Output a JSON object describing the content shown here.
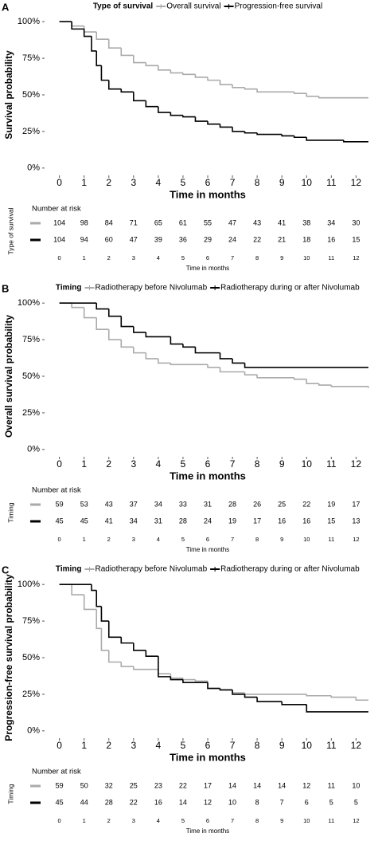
{
  "chart_data": [
    {
      "type": "line",
      "step": true,
      "panel": "A",
      "legend_title": "Type of survival",
      "xlabel": "Time in months",
      "ylabel": "Survival probability",
      "xlim": [
        -0.6,
        12.6
      ],
      "xticks": [
        0,
        1,
        2,
        3,
        4,
        5,
        6,
        7,
        8,
        9,
        10,
        11,
        12
      ],
      "ylim": [
        -5,
        105
      ],
      "yticks": [
        {
          "value": 0,
          "label": "0%"
        },
        {
          "value": 25,
          "label": "25%"
        },
        {
          "value": 50,
          "label": "50%"
        },
        {
          "value": 75,
          "label": "75%"
        },
        {
          "value": 100,
          "label": "100%"
        }
      ],
      "series": [
        {
          "name": "Overall survival",
          "color": "#aaaaaa",
          "x": [
            0,
            0.5,
            1,
            1.5,
            2,
            2.5,
            3,
            3.5,
            4,
            4.5,
            5,
            5.5,
            6,
            6.5,
            7,
            7.5,
            8,
            9.5,
            10,
            10.5,
            12.5
          ],
          "values": [
            100,
            97,
            93,
            88,
            82,
            77,
            72,
            70,
            67,
            65,
            64,
            62,
            60,
            57,
            55,
            54,
            52,
            51,
            49,
            48,
            48
          ]
        },
        {
          "name": "Progression-free survival",
          "color": "#000000",
          "x": [
            0,
            0.5,
            1,
            1.3,
            1.5,
            1.7,
            2,
            2.5,
            3,
            3.5,
            4,
            4.5,
            5,
            5.5,
            6,
            6.5,
            7,
            7.5,
            8,
            9,
            9.5,
            10,
            11.5,
            12.5
          ],
          "values": [
            100,
            95,
            90,
            80,
            70,
            60,
            54,
            52,
            46,
            42,
            38,
            36,
            35,
            32,
            30,
            28,
            25,
            24,
            23,
            22,
            21,
            19,
            18,
            18
          ]
        }
      ],
      "risk_table": {
        "title": "Number at risk",
        "ylabel": "Type of survival",
        "xlabel": "Time in months",
        "xticks": [
          0,
          1,
          2,
          3,
          4,
          5,
          6,
          7,
          8,
          9,
          10,
          11,
          12
        ],
        "rows": [
          [
            104,
            98,
            84,
            71,
            65,
            61,
            55,
            47,
            43,
            41,
            38,
            34,
            30
          ],
          [
            104,
            94,
            60,
            47,
            39,
            36,
            29,
            24,
            22,
            21,
            18,
            16,
            15
          ]
        ]
      }
    },
    {
      "type": "line",
      "step": true,
      "panel": "B",
      "legend_title": "Timing",
      "xlabel": "Time in months",
      "ylabel": "Overall survival probability",
      "xlim": [
        -0.6,
        12.6
      ],
      "xticks": [
        0,
        1,
        2,
        3,
        4,
        5,
        6,
        7,
        8,
        9,
        10,
        11,
        12
      ],
      "ylim": [
        -5,
        105
      ],
      "yticks": [
        {
          "value": 0,
          "label": "0%"
        },
        {
          "value": 25,
          "label": "25%"
        },
        {
          "value": 50,
          "label": "50%"
        },
        {
          "value": 75,
          "label": "75%"
        },
        {
          "value": 100,
          "label": "100%"
        }
      ],
      "series": [
        {
          "name": "Radiotherapy before Nivolumab",
          "color": "#aaaaaa",
          "x": [
            0,
            0.5,
            1,
            1.5,
            2,
            2.5,
            3,
            3.5,
            4,
            4.5,
            6,
            6.5,
            7.5,
            8,
            9.5,
            10,
            10.5,
            11,
            12.5
          ],
          "values": [
            100,
            97,
            90,
            82,
            75,
            70,
            66,
            62,
            59,
            58,
            56,
            53,
            51,
            49,
            48,
            45,
            44,
            43,
            42
          ]
        },
        {
          "name": "Radiotherapy during or after Nivolumab",
          "color": "#000000",
          "x": [
            0,
            1.5,
            2,
            2.5,
            3,
            3.5,
            4.5,
            5,
            5.5,
            6.5,
            7,
            7.5,
            12.5
          ],
          "values": [
            100,
            96,
            91,
            84,
            80,
            77,
            72,
            70,
            66,
            62,
            59,
            56,
            56
          ]
        }
      ],
      "risk_table": {
        "title": "Number at risk",
        "ylabel": "Timing",
        "xlabel": "Time in months",
        "xticks": [
          0,
          1,
          2,
          3,
          4,
          5,
          6,
          7,
          8,
          9,
          10,
          11,
          12
        ],
        "rows": [
          [
            59,
            53,
            43,
            37,
            34,
            33,
            31,
            28,
            26,
            25,
            22,
            19,
            17
          ],
          [
            45,
            45,
            41,
            34,
            31,
            28,
            24,
            19,
            17,
            16,
            16,
            15,
            13
          ]
        ]
      }
    },
    {
      "type": "line",
      "step": true,
      "panel": "C",
      "legend_title": "Timing",
      "xlabel": "Time in months",
      "ylabel": "Progression-free survival probability",
      "xlim": [
        -0.6,
        12.6
      ],
      "xticks": [
        0,
        1,
        2,
        3,
        4,
        5,
        6,
        7,
        8,
        9,
        10,
        11,
        12
      ],
      "ylim": [
        -5,
        105
      ],
      "yticks": [
        {
          "value": 0,
          "label": "0%"
        },
        {
          "value": 25,
          "label": "25%"
        },
        {
          "value": 50,
          "label": "50%"
        },
        {
          "value": 75,
          "label": "75%"
        },
        {
          "value": 100,
          "label": "100%"
        }
      ],
      "series": [
        {
          "name": "Radiotherapy before Nivolumab",
          "color": "#aaaaaa",
          "x": [
            0,
            0.5,
            1,
            1.5,
            1.7,
            2,
            2.5,
            3,
            4,
            4.5,
            5,
            5.5,
            6,
            6.5,
            7,
            7.5,
            10,
            11,
            12,
            12.5
          ],
          "values": [
            100,
            93,
            83,
            70,
            55,
            47,
            44,
            42,
            39,
            36,
            35,
            34,
            29,
            28,
            26,
            25,
            24,
            23,
            21,
            21
          ]
        },
        {
          "name": "Radiotherapy during or after Nivolumab",
          "color": "#000000",
          "x": [
            0,
            1.3,
            1.5,
            1.7,
            2,
            2.5,
            3,
            3.5,
            4,
            4.5,
            5,
            6,
            6.5,
            7,
            7.5,
            8,
            9,
            10,
            12.5
          ],
          "values": [
            100,
            96,
            85,
            75,
            64,
            60,
            55,
            51,
            37,
            35,
            33,
            29,
            28,
            25,
            23,
            20,
            18,
            13,
            13
          ]
        }
      ],
      "risk_table": {
        "title": "Number at risk",
        "ylabel": "Timing",
        "xlabel": "Time in months",
        "xticks": [
          0,
          1,
          2,
          3,
          4,
          5,
          6,
          7,
          8,
          9,
          10,
          11,
          12
        ],
        "rows": [
          [
            59,
            50,
            32,
            25,
            23,
            22,
            17,
            14,
            14,
            14,
            12,
            11,
            10
          ],
          [
            45,
            44,
            28,
            22,
            16,
            14,
            12,
            10,
            8,
            7,
            6,
            5,
            5
          ]
        ]
      }
    }
  ]
}
